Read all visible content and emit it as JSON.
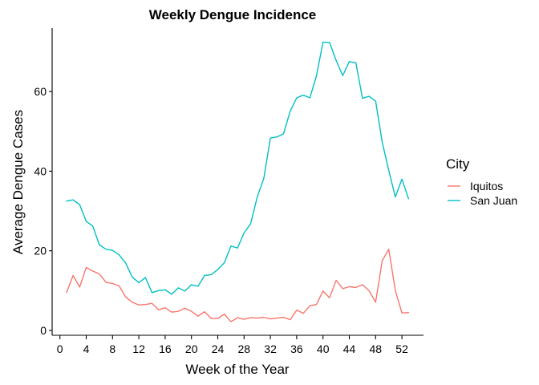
{
  "chart_data": {
    "type": "line",
    "title": "Weekly Dengue Incidence",
    "xlabel": "Week of the Year",
    "ylabel": "Average Dengue Cases",
    "xlim": [
      0,
      54
    ],
    "ylim": [
      0,
      76
    ],
    "xticks": [
      0,
      4,
      8,
      12,
      16,
      20,
      24,
      28,
      32,
      36,
      40,
      44,
      48,
      52
    ],
    "yticks": [
      0,
      20,
      40,
      60
    ],
    "grid": false,
    "legend": {
      "title": "City",
      "position": "right"
    },
    "x": [
      1,
      2,
      3,
      4,
      5,
      6,
      7,
      8,
      9,
      10,
      11,
      12,
      13,
      14,
      15,
      16,
      17,
      18,
      19,
      20,
      21,
      22,
      23,
      24,
      25,
      26,
      27,
      28,
      29,
      30,
      31,
      32,
      33,
      34,
      35,
      36,
      37,
      38,
      39,
      40,
      41,
      42,
      43,
      44,
      45,
      46,
      47,
      48,
      49,
      50,
      51,
      52,
      53
    ],
    "series": [
      {
        "name": "Iquitos",
        "color": "#F8766D",
        "values": [
          9.5,
          13.8,
          10.9,
          15.8,
          14.9,
          14.2,
          12.1,
          11.8,
          11.2,
          8.4,
          7.1,
          6.4,
          6.5,
          6.8,
          5.2,
          5.7,
          4.6,
          4.8,
          5.6,
          4.8,
          3.6,
          4.7,
          3.0,
          3.0,
          4.1,
          2.2,
          3.2,
          2.8,
          3.2,
          3.1,
          3.3,
          2.9,
          3.1,
          3.3,
          2.7,
          5.1,
          4.3,
          6.2,
          6.5,
          9.9,
          8.2,
          12.6,
          10.5,
          11.0,
          10.8,
          11.5,
          10.0,
          7.1,
          17.5,
          20.4,
          10.0,
          4.4,
          4.5
        ]
      },
      {
        "name": "San Juan",
        "color": "#00BFC4",
        "values": [
          32.5,
          32.8,
          31.6,
          27.4,
          26.2,
          21.5,
          20.4,
          20.1,
          19.0,
          16.9,
          13.4,
          12.0,
          13.3,
          9.5,
          10.0,
          10.2,
          9.1,
          10.7,
          9.9,
          11.5,
          11.1,
          13.8,
          14.0,
          15.3,
          17.0,
          21.2,
          20.7,
          24.5,
          26.8,
          33.5,
          38.2,
          48.3,
          48.6,
          49.4,
          55.0,
          58.4,
          59.1,
          58.4,
          63.9,
          72.4,
          72.3,
          67.8,
          64.0,
          67.5,
          67.2,
          58.3,
          58.8,
          57.6,
          47.3,
          40.2,
          33.5,
          38.0,
          33.1
        ]
      }
    ]
  }
}
